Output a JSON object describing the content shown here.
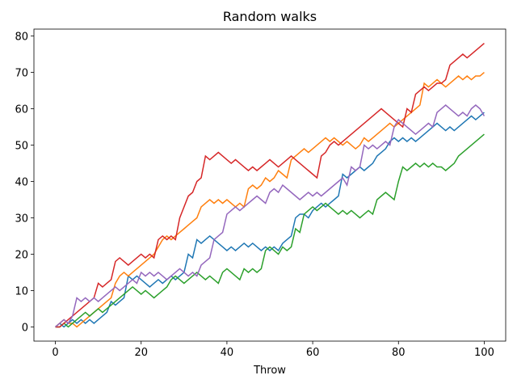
{
  "chart_data": {
    "type": "line",
    "title": "Random walks",
    "x_label": "Throw",
    "x": [
      0,
      1,
      2,
      3,
      4,
      5,
      6,
      7,
      8,
      9,
      10,
      11,
      12,
      13,
      14,
      15,
      16,
      17,
      18,
      19,
      20,
      21,
      22,
      23,
      24,
      25,
      26,
      27,
      28,
      29,
      30,
      31,
      32,
      33,
      34,
      35,
      36,
      37,
      38,
      39,
      40,
      41,
      42,
      43,
      44,
      45,
      46,
      47,
      48,
      49,
      50,
      51,
      52,
      53,
      54,
      55,
      56,
      57,
      58,
      59,
      60,
      61,
      62,
      63,
      64,
      65,
      66,
      67,
      68,
      69,
      70,
      71,
      72,
      73,
      74,
      75,
      76,
      77,
      78,
      79,
      80,
      81,
      82,
      83,
      84,
      85,
      86,
      87,
      88,
      89,
      90,
      91,
      92,
      93,
      94,
      95,
      96,
      97,
      98,
      99,
      100
    ],
    "series": [
      {
        "color": "#1f77b4",
        "values": [
          0,
          1,
          0,
          1,
          2,
          1,
          2,
          1,
          2,
          1,
          2,
          3,
          4,
          7,
          6,
          7,
          8,
          14,
          13,
          14,
          13,
          12,
          11,
          12,
          13,
          12,
          13,
          14,
          13,
          14,
          15,
          20,
          19,
          24,
          23,
          24,
          25,
          24,
          23,
          22,
          21,
          22,
          21,
          22,
          23,
          22,
          23,
          22,
          21,
          22,
          21,
          22,
          21,
          23,
          24,
          25,
          30,
          31,
          31,
          30,
          32,
          33,
          34,
          33,
          34,
          35,
          36,
          42,
          41,
          42,
          43,
          44,
          43,
          44,
          45,
          47,
          48,
          49,
          51,
          52,
          51,
          52,
          51,
          52,
          51,
          52,
          53,
          54,
          55,
          56,
          55,
          54,
          55,
          54,
          55,
          56,
          57,
          58,
          57,
          58,
          59
        ]
      },
      {
        "color": "#ff7f0e",
        "values": [
          0,
          1,
          2,
          1,
          1,
          0,
          1,
          2,
          3,
          4,
          5,
          6,
          7,
          8,
          12,
          14,
          15,
          14,
          15,
          16,
          17,
          18,
          19,
          20,
          22,
          24,
          25,
          24,
          25,
          26,
          27,
          28,
          29,
          30,
          33,
          34,
          35,
          34,
          35,
          34,
          35,
          34,
          33,
          34,
          33,
          38,
          39,
          38,
          39,
          41,
          40,
          41,
          43,
          42,
          41,
          46,
          47,
          48,
          49,
          48,
          49,
          50,
          51,
          52,
          51,
          52,
          51,
          50,
          51,
          50,
          49,
          50,
          52,
          51,
          52,
          53,
          54,
          55,
          56,
          55,
          56,
          57,
          58,
          59,
          60,
          61,
          67,
          66,
          67,
          68,
          67,
          66,
          67,
          68,
          69,
          68,
          69,
          68,
          69,
          69,
          70
        ]
      },
      {
        "color": "#2ca02c",
        "values": [
          0,
          0,
          1,
          0,
          1,
          2,
          3,
          4,
          3,
          4,
          5,
          4,
          5,
          6,
          7,
          8,
          9,
          10,
          11,
          10,
          9,
          10,
          9,
          8,
          9,
          10,
          11,
          13,
          14,
          13,
          12,
          13,
          14,
          15,
          14,
          13,
          14,
          13,
          12,
          15,
          16,
          15,
          14,
          13,
          16,
          15,
          16,
          15,
          16,
          21,
          22,
          21,
          20,
          22,
          21,
          22,
          27,
          26,
          31,
          32,
          33,
          32,
          33,
          34,
          33,
          32,
          31,
          32,
          31,
          32,
          31,
          30,
          31,
          32,
          31,
          35,
          36,
          37,
          36,
          35,
          40,
          44,
          43,
          44,
          45,
          44,
          45,
          44,
          45,
          44,
          44,
          43,
          44,
          45,
          47,
          48,
          49,
          50,
          51,
          52,
          53
        ]
      },
      {
        "color": "#d62728",
        "values": [
          0,
          0,
          1,
          2,
          3,
          4,
          5,
          6,
          7,
          8,
          12,
          11,
          12,
          13,
          18,
          19,
          18,
          17,
          18,
          19,
          20,
          19,
          20,
          19,
          24,
          25,
          24,
          25,
          24,
          30,
          33,
          36,
          37,
          40,
          41,
          47,
          46,
          47,
          48,
          47,
          46,
          45,
          46,
          45,
          44,
          43,
          44,
          43,
          44,
          45,
          46,
          45,
          44,
          45,
          46,
          47,
          46,
          45,
          44,
          43,
          42,
          41,
          47,
          48,
          50,
          51,
          50,
          51,
          52,
          53,
          54,
          55,
          56,
          57,
          58,
          59,
          60,
          59,
          58,
          57,
          56,
          55,
          60,
          59,
          64,
          65,
          66,
          65,
          66,
          67,
          67,
          68,
          72,
          73,
          74,
          75,
          74,
          75,
          76,
          77,
          78
        ]
      },
      {
        "color": "#9467bd",
        "values": [
          0,
          1,
          2,
          1,
          3,
          8,
          7,
          8,
          7,
          8,
          7,
          8,
          9,
          10,
          11,
          10,
          11,
          12,
          13,
          12,
          15,
          14,
          15,
          14,
          15,
          14,
          13,
          14,
          15,
          16,
          15,
          14,
          15,
          14,
          17,
          18,
          19,
          24,
          25,
          26,
          31,
          32,
          33,
          32,
          33,
          34,
          35,
          36,
          35,
          34,
          37,
          38,
          37,
          39,
          38,
          37,
          36,
          35,
          36,
          37,
          36,
          37,
          36,
          37,
          38,
          39,
          40,
          41,
          39,
          44,
          43,
          44,
          50,
          49,
          50,
          49,
          50,
          51,
          50,
          55,
          57,
          56,
          55,
          54,
          53,
          54,
          55,
          56,
          55,
          59,
          60,
          61,
          60,
          59,
          58,
          59,
          58,
          60,
          61,
          60,
          58
        ]
      }
    ],
    "xlim": [
      -5,
      105
    ],
    "ylim": [
      -3.9,
      81.9
    ],
    "xticks": [
      0,
      20,
      40,
      60,
      80,
      100
    ],
    "yticks": [
      0,
      10,
      20,
      30,
      40,
      50,
      60,
      70,
      80
    ]
  }
}
